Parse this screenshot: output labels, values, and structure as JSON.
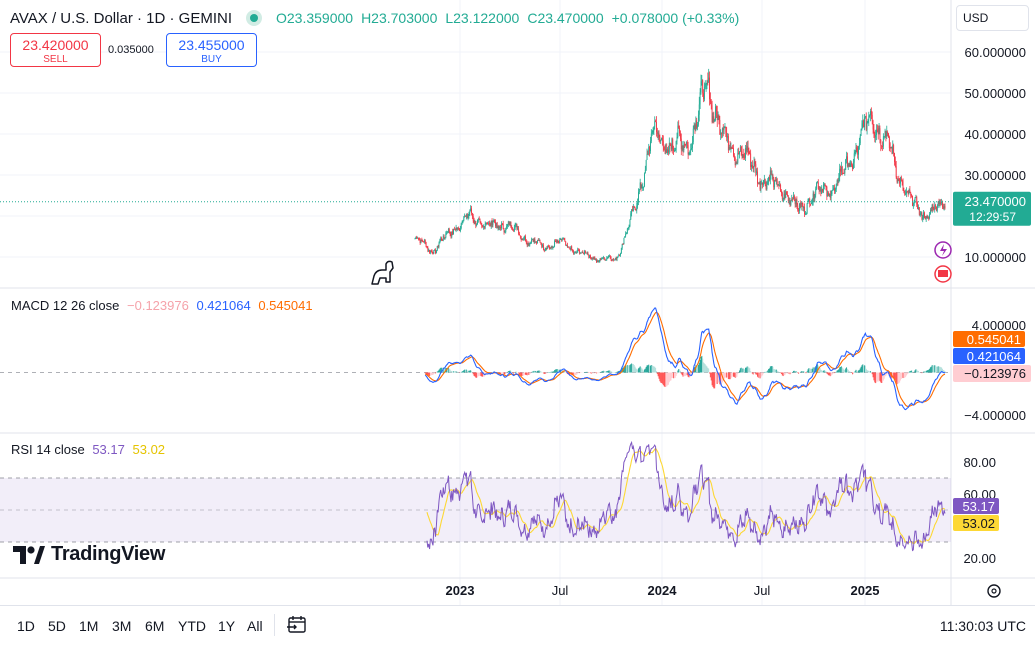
{
  "header": {
    "symbol": "AVAX / U.S. Dollar · 1D · GEMINI",
    "open": "O23.359000",
    "high": "H23.703000",
    "low": "L23.122000",
    "close": "C23.470000",
    "change": "+0.078000 (+0.33%)"
  },
  "trade": {
    "sell_price": "23.420000",
    "sell_label": "SELL",
    "spread": "0.035000",
    "buy_price": "23.455000",
    "buy_label": "BUY"
  },
  "currency": "USD",
  "price_axis": {
    "labels": [
      "60.000000",
      "50.000000",
      "40.000000",
      "30.000000",
      "10.000000"
    ],
    "current_price": "23.470000",
    "countdown": "12:29:57"
  },
  "macd": {
    "title": "MACD 12 26 close",
    "histogram": "−0.123976",
    "macd": "0.421064",
    "signal": "0.545041",
    "axis_labels": [
      "4.000000",
      "−4.000000"
    ]
  },
  "rsi": {
    "title": "RSI 14 close",
    "rsi": "53.17",
    "ma": "53.02",
    "axis_labels": [
      "80.00",
      "60.00",
      "20.00"
    ]
  },
  "time_axis": [
    "2023",
    "Jul",
    "2024",
    "Jul",
    "2025"
  ],
  "footer": {
    "ranges": [
      "1D",
      "5D",
      "1M",
      "3M",
      "6M",
      "YTD",
      "1Y",
      "All"
    ],
    "clock": "11:30:03 UTC"
  },
  "branding": "TradingView",
  "colors": {
    "up": "#22ab94",
    "down": "#f23645",
    "macd": "#2962ff",
    "signal": "#ff6d00",
    "rsi": "#7e57c2",
    "rsi_ma": "#fdd835",
    "price_label": "#22ab94"
  },
  "chart_data": {
    "type": "candlestick",
    "title": "AVAX / U.S. Dollar · 1D · GEMINI",
    "x": [
      "2022-11",
      "2022-12",
      "2023-01",
      "2023-02",
      "2023-03",
      "2023-04",
      "2023-05",
      "2023-06",
      "2023-07",
      "2023-08",
      "2023-09",
      "2023-10",
      "2023-11",
      "2023-12",
      "2024-01",
      "2024-02",
      "2024-03",
      "2024-04",
      "2024-05",
      "2024-06",
      "2024-07",
      "2024-08",
      "2024-09",
      "2024-10",
      "2024-11",
      "2024-12",
      "2025-01",
      "2025-02",
      "2025-03",
      "2025-04"
    ],
    "close": [
      14.5,
      11.5,
      16.5,
      20,
      17.5,
      18,
      14.8,
      12.5,
      13.5,
      11,
      9.5,
      9.5,
      21,
      40,
      37,
      38,
      52,
      38,
      35,
      29,
      27,
      21.5,
      26,
      27,
      35,
      45,
      36,
      24,
      20,
      23.47
    ],
    "ylim": [
      5,
      67
    ],
    "ylabel_ticks": [
      10,
      30,
      40,
      50,
      60
    ],
    "macd": {
      "ylim": [
        -4.5,
        6.5
      ],
      "ticks": [
        4,
        -4
      ]
    },
    "rsi": {
      "ylim": [
        15,
        90
      ],
      "ticks": [
        20,
        60,
        80
      ],
      "bands": [
        30,
        70
      ]
    }
  }
}
